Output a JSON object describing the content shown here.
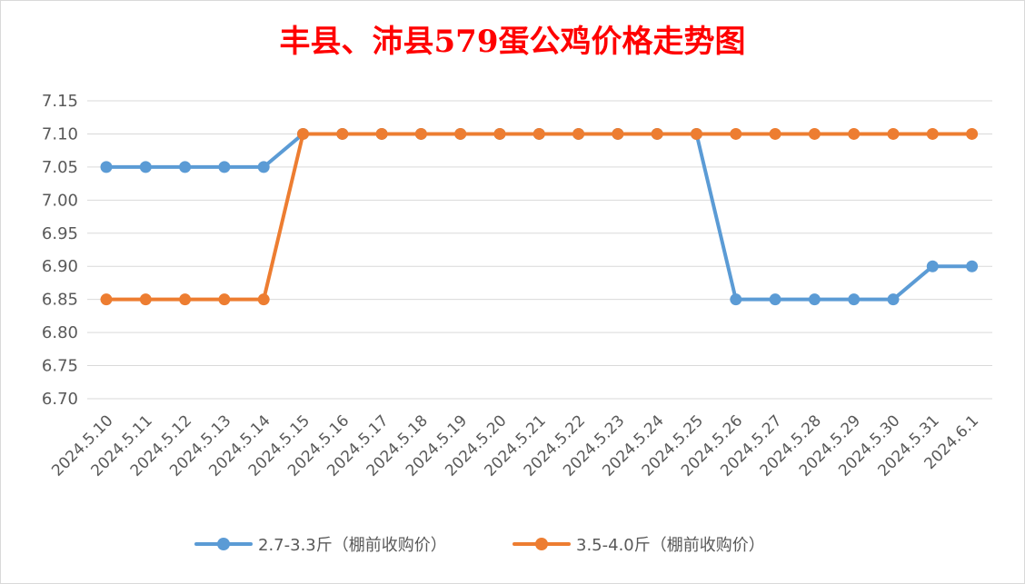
{
  "chart_data": {
    "type": "line",
    "title": "丰县、沛县579蛋公鸡价格走势图",
    "xlabel": "",
    "ylabel": "",
    "categories": [
      "2024.5.10",
      "2024.5.11",
      "2024.5.12",
      "2024.5.13",
      "2024.5.14",
      "2024.5.15",
      "2024.5.16",
      "2024.5.17",
      "2024.5.18",
      "2024.5.19",
      "2024.5.20",
      "2024.5.21",
      "2024.5.22",
      "2024.5.23",
      "2024.5.24",
      "2024.5.25",
      "2024.5.26",
      "2024.5.27",
      "2024.5.28",
      "2024.5.29",
      "2024.5.30",
      "2024.5.31",
      "2024.6.1"
    ],
    "series": [
      {
        "name": "2.7-3.3斤（棚前收购价）",
        "color": "#5b9bd5",
        "values": [
          7.05,
          7.05,
          7.05,
          7.05,
          7.05,
          7.1,
          7.1,
          7.1,
          7.1,
          7.1,
          7.1,
          7.1,
          7.1,
          7.1,
          7.1,
          7.1,
          6.85,
          6.85,
          6.85,
          6.85,
          6.85,
          6.9,
          6.9
        ]
      },
      {
        "name": "3.5-4.0斤（棚前收购价）",
        "color": "#ed7d31",
        "values": [
          6.85,
          6.85,
          6.85,
          6.85,
          6.85,
          7.1,
          7.1,
          7.1,
          7.1,
          7.1,
          7.1,
          7.1,
          7.1,
          7.1,
          7.1,
          7.1,
          7.1,
          7.1,
          7.1,
          7.1,
          7.1,
          7.1,
          7.1
        ]
      }
    ],
    "ylim": [
      6.7,
      7.15
    ],
    "yticks": [
      "6.70",
      "6.75",
      "6.80",
      "6.85",
      "6.90",
      "6.95",
      "7.00",
      "7.05",
      "7.10",
      "7.15"
    ],
    "grid": true,
    "legend": "bottom",
    "title_color": "#ff0000"
  }
}
